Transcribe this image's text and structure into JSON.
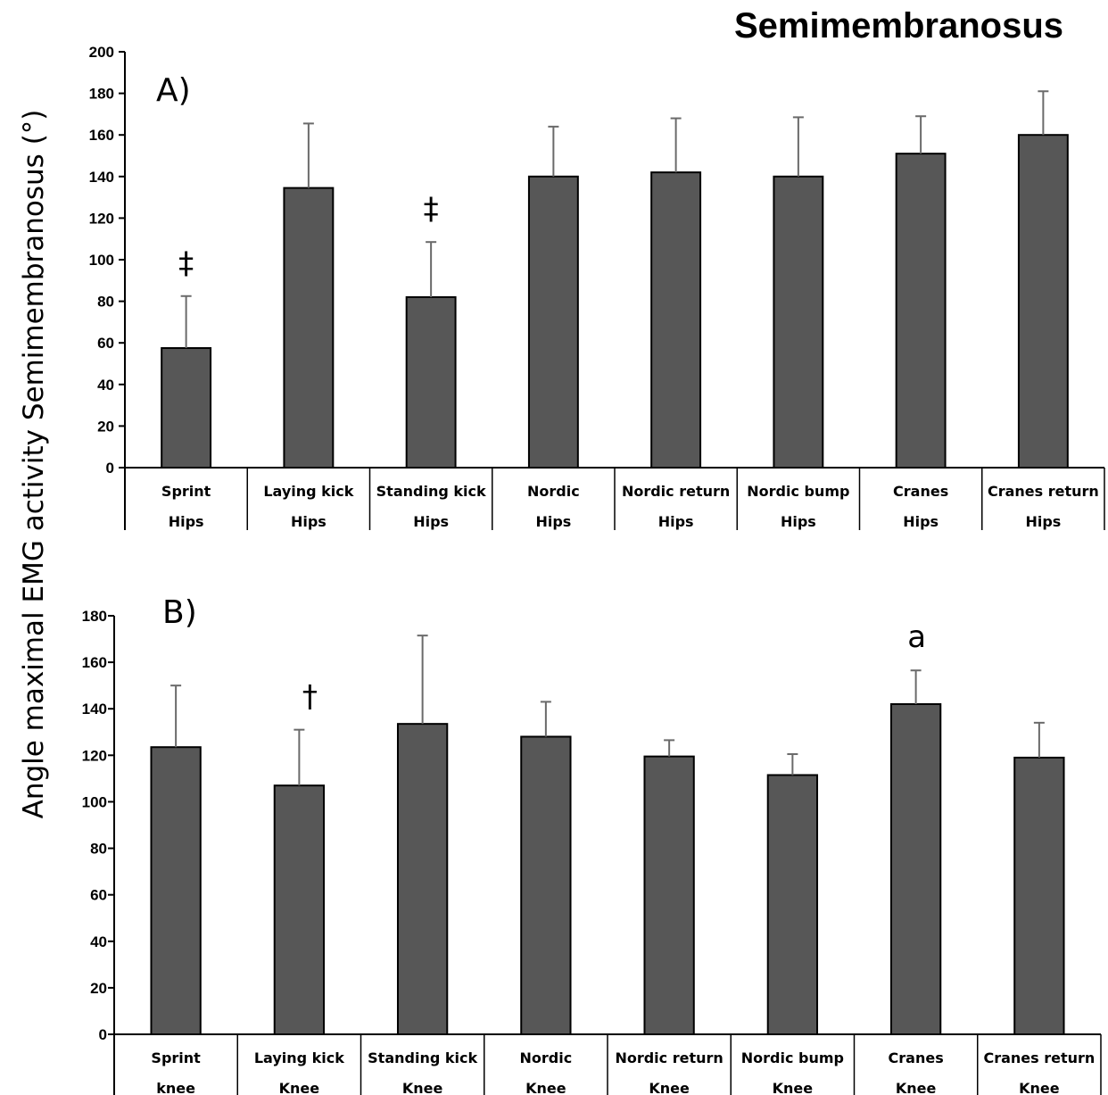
{
  "title": "Semimembranosus",
  "ylabel": "Angle maximal EMG activity Semimembranosus (°)",
  "colors": {
    "bar": "#575757",
    "bar_edge": "#000000",
    "error_bar": "#6a6a6a",
    "axis": "#000000"
  },
  "chart_data": [
    {
      "type": "bar",
      "panel_label": "A)",
      "ylim": [
        0,
        200
      ],
      "yticks": [
        0,
        20,
        40,
        60,
        80,
        100,
        120,
        140,
        160,
        180,
        200
      ],
      "categories": [
        [
          "Sprint",
          "Hips"
        ],
        [
          "Laying kick",
          "Hips"
        ],
        [
          "Standing kick",
          "Hips"
        ],
        [
          "Nordic",
          "Hips"
        ],
        [
          "Nordic return",
          "Hips"
        ],
        [
          "Nordic bump",
          "Hips"
        ],
        [
          "Cranes",
          "Hips"
        ],
        [
          "Cranes return",
          "Hips"
        ]
      ],
      "values": [
        57.5,
        134.5,
        82,
        140,
        142,
        140,
        151,
        160
      ],
      "error": [
        25,
        31,
        26.5,
        24,
        26,
        28.5,
        18,
        21
      ],
      "annotations": [
        "‡",
        "",
        "‡",
        "",
        "",
        "",
        "",
        ""
      ],
      "grid": false
    },
    {
      "type": "bar",
      "panel_label": "B)",
      "ylim": [
        0,
        180
      ],
      "yticks": [
        0,
        20,
        40,
        60,
        80,
        100,
        120,
        140,
        160,
        180
      ],
      "categories": [
        [
          "Sprint",
          "knee"
        ],
        [
          "Laying kick",
          "Knee"
        ],
        [
          "Standing kick",
          "Knee"
        ],
        [
          "Nordic",
          "Knee"
        ],
        [
          "Nordic return",
          "Knee"
        ],
        [
          "Nordic bump",
          "Knee"
        ],
        [
          "Cranes",
          "Knee"
        ],
        [
          "Cranes return",
          "Knee"
        ]
      ],
      "values": [
        123.5,
        107,
        133.5,
        128,
        119.5,
        111.5,
        142,
        119
      ],
      "error": [
        26.5,
        24,
        38,
        15,
        7,
        9,
        14.5,
        15
      ],
      "annotations": [
        "",
        "†",
        "",
        "",
        "",
        "",
        "a",
        ""
      ],
      "grid": false
    }
  ]
}
